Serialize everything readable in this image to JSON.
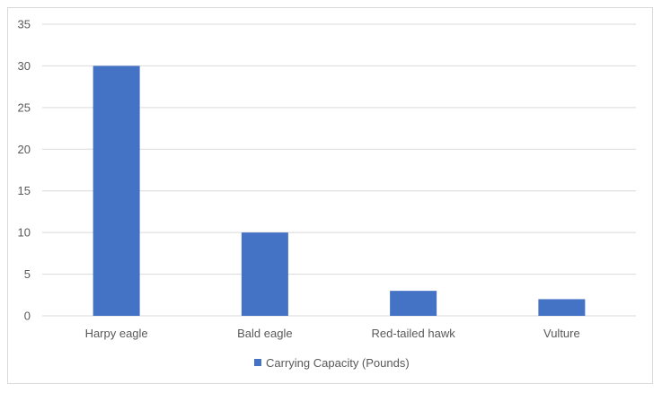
{
  "chart_data": {
    "type": "bar",
    "categories": [
      "Harpy eagle",
      "Bald eagle",
      "Red-tailed hawk",
      "Vulture"
    ],
    "series": [
      {
        "name": "Carrying Capacity (Pounds)",
        "values": [
          30,
          10,
          3,
          2
        ],
        "color": "#4472c4"
      }
    ],
    "ylim": [
      0,
      35
    ],
    "yticks": [
      0,
      5,
      10,
      15,
      20,
      25,
      30,
      35
    ],
    "grid": true,
    "legend_position": "bottom",
    "gridline_color": "#d9d9d9",
    "text_color": "#595959"
  }
}
